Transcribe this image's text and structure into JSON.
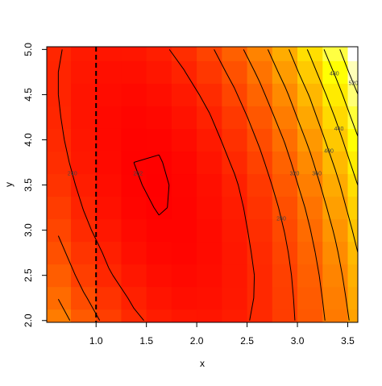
{
  "chart_data": {
    "type": "image-contour",
    "x_label": "x",
    "y_label": "y",
    "xlim": [
      0.51,
      3.6
    ],
    "ylim": [
      1.98,
      5.03
    ],
    "xticks": [
      {
        "value": 1,
        "label": "1.0"
      },
      {
        "value": 1.5,
        "label": "1.5"
      },
      {
        "value": 2,
        "label": "2.0"
      },
      {
        "value": 2.5,
        "label": "2.5"
      },
      {
        "value": 3,
        "label": "3.0"
      },
      {
        "value": 3.5,
        "label": "3.5"
      }
    ],
    "yticks": [
      {
        "value": 2,
        "label": "2.0"
      },
      {
        "value": 2.5,
        "label": "2.5"
      },
      {
        "value": 3,
        "label": "3.0"
      },
      {
        "value": 3.5,
        "label": "3.5"
      },
      {
        "value": 4,
        "label": "4.0"
      },
      {
        "value": 4.5,
        "label": "4.5"
      },
      {
        "value": 5,
        "label": "5.0"
      }
    ],
    "x": [
      0.625,
      0.875,
      1.125,
      1.375,
      1.625,
      1.875,
      2.125,
      2.375,
      2.625,
      2.875,
      3.125,
      3.375,
      3.625
    ],
    "y": [
      2.0,
      2.25,
      2.5,
      2.75,
      3.0,
      3.25,
      3.5,
      3.75,
      4.0,
      4.25,
      4.5,
      4.75,
      5.0
    ],
    "z": [
      [
        337,
        300,
        269,
        246,
        231,
        224,
        223,
        231,
        246,
        268,
        298,
        335,
        380
      ],
      [
        319,
        284,
        256,
        235,
        222,
        216,
        218,
        227,
        244,
        269,
        301,
        340,
        387
      ],
      [
        303,
        269,
        243,
        225,
        214,
        210,
        214,
        225,
        244,
        271,
        305,
        346,
        395
      ],
      [
        289,
        258,
        234,
        217,
        208,
        206,
        212,
        226,
        247,
        275,
        311,
        354,
        405
      ],
      [
        277,
        247,
        225,
        211,
        204,
        204,
        212,
        228,
        251,
        281,
        319,
        364,
        417
      ],
      [
        266,
        239,
        219,
        206,
        201,
        204,
        214,
        231,
        256,
        288,
        328,
        376,
        431
      ],
      [
        257,
        232,
        214,
        203,
        200,
        205,
        217,
        236,
        263,
        298,
        340,
        389,
        446
      ],
      [
        250,
        227,
        211,
        202,
        201,
        208,
        222,
        244,
        273,
        309,
        353,
        405,
        464
      ],
      [
        245,
        224,
        210,
        203,
        204,
        213,
        229,
        253,
        284,
        322,
        368,
        422,
        483
      ],
      [
        242,
        222,
        210,
        206,
        209,
        220,
        238,
        263,
        296,
        337,
        385,
        441,
        504
      ],
      [
        240,
        222,
        213,
        210,
        215,
        228,
        248,
        276,
        311,
        353,
        403,
        461,
        526
      ],
      [
        240,
        225,
        217,
        217,
        224,
        239,
        261,
        290,
        327,
        372,
        424,
        484,
        551
      ],
      [
        242,
        229,
        223,
        224,
        233,
        250,
        274,
        306,
        345,
        391,
        446,
        507,
        577
      ]
    ],
    "levels": [
      202,
      240,
      280,
      320,
      360,
      400,
      440,
      480,
      520
    ],
    "vline": 1
  }
}
